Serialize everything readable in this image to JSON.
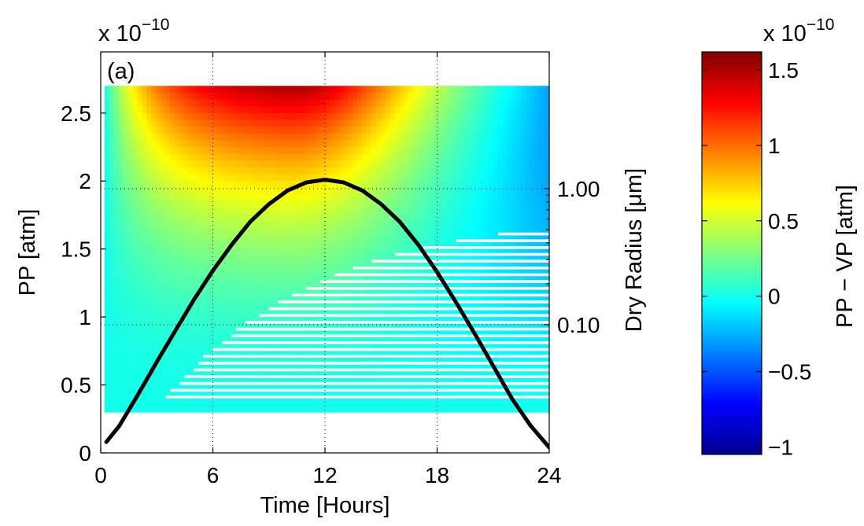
{
  "chart_data": {
    "type": "heatmap",
    "panel_label": "(a)",
    "x": {
      "label": "Time [Hours]",
      "range": [
        0,
        24
      ],
      "ticks": [
        0,
        6,
        12,
        18,
        24
      ],
      "tick_labels": [
        "0",
        "6",
        "12",
        "18",
        "24"
      ]
    },
    "y_left": {
      "label": "PP [atm]",
      "range": [
        0,
        2.95e-10
      ],
      "exponent_label": "x 10",
      "exponent": "−10",
      "ticks": [
        0,
        5e-11,
        1e-10,
        1.5e-10,
        2e-10,
        2.5e-10
      ],
      "tick_labels": [
        "0",
        "0.5",
        "1",
        "1.5",
        "2",
        "2.5"
      ]
    },
    "y_right": {
      "label": "Dry Radius [μm]",
      "scale": "log",
      "ticks": [
        0.1,
        1.0
      ],
      "tick_labels": [
        "0.10",
        "1.00"
      ]
    },
    "colorbar": {
      "label": "PP − VP [atm]",
      "colormap": "jet",
      "range": [
        -1.05e-10,
        1.62e-10
      ],
      "exponent_label": "x 10",
      "exponent": "−10",
      "ticks": [
        -1e-10,
        -5e-11,
        0,
        5e-11,
        1e-10,
        1.5e-10
      ],
      "tick_labels": [
        "−1",
        "−0.5",
        "0",
        "0.5",
        "1",
        "1.5"
      ]
    },
    "heatmap_extent": {
      "x": [
        0.2,
        24
      ],
      "y": [
        3e-11,
        2.7e-10
      ]
    },
    "gridlines": {
      "x": [
        6,
        12,
        18
      ],
      "right_axis": [
        0.1,
        1.0
      ]
    },
    "series": [
      {
        "type": "line",
        "color": "#000000",
        "x": [
          0.3,
          1,
          2,
          3,
          4,
          5,
          6,
          7,
          8,
          9,
          10,
          11,
          12,
          13,
          14,
          15,
          16,
          17,
          18,
          19,
          20,
          21,
          22,
          23,
          24
        ],
        "y": [
          8e-12,
          2e-11,
          4.3e-11,
          6.7e-11,
          9e-11,
          1.13e-10,
          1.34e-10,
          1.53e-10,
          1.7e-10,
          1.83e-10,
          1.93e-10,
          1.99e-10,
          2.01e-10,
          1.99e-10,
          1.93e-10,
          1.83e-10,
          1.7e-10,
          1.53e-10,
          1.33e-10,
          1.11e-10,
          8.8e-11,
          6.4e-11,
          4e-11,
          2e-11,
          4e-12
        ]
      }
    ]
  }
}
